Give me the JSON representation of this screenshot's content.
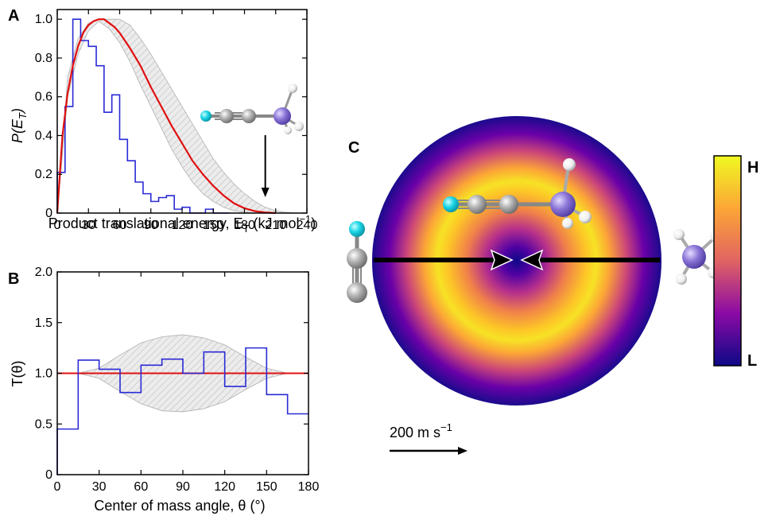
{
  "chart_data": [
    {
      "panel": "A",
      "type": "line",
      "xlabel": "Product translational energy, E",
      "xlabel_sub": "T",
      "xlabel_units": " (kJ mol",
      "xlabel_sup": "−1",
      "xlabel_close": ")",
      "ylabel": "P(E",
      "ylabel_sub": "T",
      "ylabel_close": ")",
      "xlim": [
        0,
        240
      ],
      "ylim": [
        0,
        1.05
      ],
      "xticks": [
        0,
        30,
        60,
        90,
        120,
        150,
        180,
        210,
        240
      ],
      "yticks": [
        0,
        0.2,
        0.4,
        0.6,
        0.8,
        1.0
      ],
      "ytick_labels": [
        "0",
        "0.2",
        "0.4",
        "0.6",
        "0.8",
        "1.0"
      ],
      "histogram": {
        "color": "#2a2ad6",
        "bin_width": 7.5,
        "x_start": 0,
        "values": [
          0.21,
          0.55,
          1.0,
          0.89,
          0.86,
          0.76,
          0.52,
          0.61,
          0.38,
          0.27,
          0.16,
          0.1,
          0.06,
          0.08,
          0.09,
          0.02,
          0.03,
          0.0,
          0.0,
          0.02,
          0.0,
          0.0
        ]
      },
      "fit_curve": {
        "color": "#e01010",
        "x": [
          0,
          5,
          10,
          15,
          20,
          25,
          30,
          35,
          40,
          45,
          50,
          55,
          60,
          70,
          80,
          90,
          100,
          110,
          120,
          130,
          140,
          150,
          160,
          170,
          180,
          190,
          200,
          210
        ],
        "y": [
          0,
          0.4,
          0.62,
          0.76,
          0.86,
          0.93,
          0.97,
          0.99,
          1.0,
          1.0,
          0.98,
          0.96,
          0.93,
          0.85,
          0.76,
          0.65,
          0.55,
          0.45,
          0.36,
          0.27,
          0.2,
          0.14,
          0.09,
          0.05,
          0.025,
          0.01,
          0.003,
          0.0
        ]
      },
      "uncertainty_band": {
        "color": "#cccccc",
        "x": [
          0,
          10,
          20,
          30,
          40,
          50,
          60,
          70,
          80,
          90,
          100,
          110,
          120,
          130,
          140,
          150,
          160,
          170,
          180,
          190,
          200,
          210,
          220,
          230
        ],
        "lower": [
          0,
          0.6,
          0.82,
          0.94,
          0.99,
          0.95,
          0.88,
          0.78,
          0.66,
          0.55,
          0.44,
          0.33,
          0.24,
          0.16,
          0.1,
          0.06,
          0.03,
          0.012,
          0.004,
          0.0,
          0.0,
          0.0,
          0.0,
          0.0
        ],
        "upper": [
          0,
          0.7,
          0.9,
          0.98,
          1.0,
          1.0,
          1.0,
          0.97,
          0.9,
          0.82,
          0.73,
          0.64,
          0.55,
          0.46,
          0.37,
          0.28,
          0.21,
          0.15,
          0.1,
          0.06,
          0.03,
          0.012,
          0.004,
          0.0
        ]
      },
      "arrow_energy": 200
    },
    {
      "panel": "B",
      "type": "line",
      "xlabel": "Center of mass angle, θ (°)",
      "ylabel": "T(θ)",
      "xlim": [
        0,
        180
      ],
      "ylim": [
        0,
        2.0
      ],
      "xticks": [
        0,
        30,
        60,
        90,
        120,
        150,
        180
      ],
      "yticks": [
        0,
        0.5,
        1.0,
        1.5,
        2.0
      ],
      "ytick_labels": [
        "0",
        "0.5",
        "1.0",
        "1.5",
        "2.0"
      ],
      "histogram": {
        "color": "#2a2ad6",
        "bin_width": 15,
        "x_start": 0,
        "values": [
          0.45,
          1.13,
          1.04,
          0.81,
          1.08,
          1.14,
          1.0,
          1.21,
          0.87,
          1.25,
          0.79,
          0.6
        ]
      },
      "fit_line": {
        "color": "#e01010",
        "value": 1.0
      },
      "uncertainty_band": {
        "color": "#cccccc",
        "x": [
          15,
          30,
          45,
          60,
          75,
          90,
          105,
          120,
          135,
          150,
          165
        ],
        "lower": [
          1.0,
          0.95,
          0.82,
          0.7,
          0.63,
          0.62,
          0.65,
          0.72,
          0.84,
          0.95,
          1.0
        ],
        "upper": [
          1.0,
          1.05,
          1.18,
          1.3,
          1.36,
          1.38,
          1.35,
          1.28,
          1.16,
          1.05,
          1.0
        ]
      }
    }
  ],
  "panel_labels": {
    "a": "A",
    "b": "B",
    "c": "C"
  },
  "velocity_map": {
    "colorbar_high": "H",
    "colorbar_low": "L",
    "scale_label": "200 m s",
    "scale_sup": "−1"
  },
  "colors": {
    "histogram": "#2a2ad6",
    "fit": "#e01010",
    "band": "#cccccc",
    "map_low": "#0d0887",
    "map_mid": "#b4366d",
    "map_high": "#f0f921"
  }
}
